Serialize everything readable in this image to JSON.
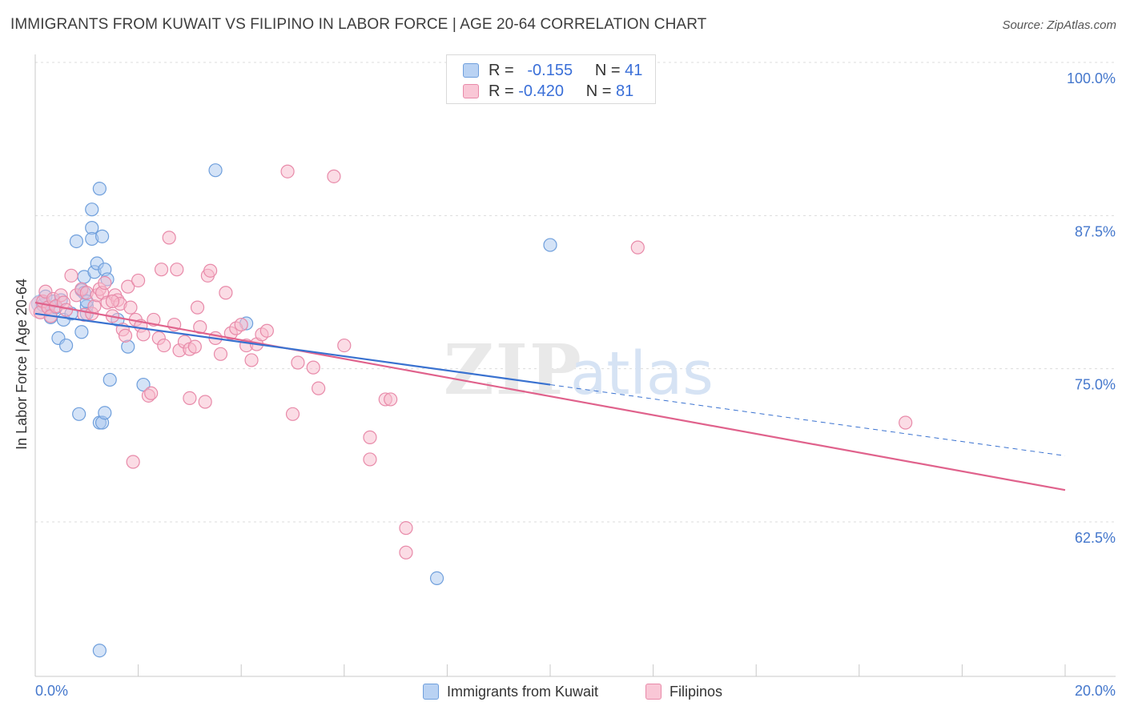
{
  "title": "IMMIGRANTS FROM KUWAIT VS FILIPINO IN LABOR FORCE | AGE 20-64 CORRELATION CHART",
  "source": "Source: ZipAtlas.com",
  "legend": {
    "r_label": "R =",
    "n_label": "N =",
    "series": [
      {
        "name": "Immigrants from Kuwait",
        "r": "-0.155",
        "n": "41"
      },
      {
        "name": "Filipinos",
        "r": "-0.420",
        "n": "81"
      }
    ]
  },
  "chart_data": {
    "type": "scatter",
    "title": "IMMIGRANTS FROM KUWAIT VS FILIPINO IN LABOR FORCE | AGE 20-64 CORRELATION CHART",
    "xlabel": "",
    "ylabel": "In Labor Force | Age 20-64",
    "xlim": [
      0,
      20
    ],
    "ylim": [
      50,
      102.5
    ],
    "x_tick_labels": [
      "0.0%",
      "20.0%"
    ],
    "y_ticks": [
      62.5,
      75.0,
      87.5,
      100.0
    ],
    "y_tick_labels": [
      "62.5%",
      "75.0%",
      "87.5%",
      "100.0%"
    ],
    "watermark": "ZIPatlas",
    "colors": {
      "kuwait_fill": "#a9c8f0",
      "kuwait_stroke": "#6f9fdc",
      "kuwait_line": "#3a72d0",
      "filipino_fill": "#f7b9cc",
      "filipino_stroke": "#e88aa9",
      "filipino_line": "#e0628c",
      "axis_label_blue": "#4477cc"
    },
    "series": [
      {
        "name": "Immigrants from Kuwait",
        "trend": {
          "x0": 0.0,
          "y0": 79.5,
          "x1": 10.0,
          "y1": 73.7,
          "dashed_to_x": 20.0,
          "dashed_to_y": 67.9
        },
        "points": [
          [
            0.15,
            80.2
          ],
          [
            0.2,
            80.9
          ],
          [
            0.25,
            80.0
          ],
          [
            0.3,
            79.2
          ],
          [
            0.35,
            80.5
          ],
          [
            0.4,
            80.0
          ],
          [
            0.45,
            77.5
          ],
          [
            0.5,
            80.6
          ],
          [
            0.55,
            79.0
          ],
          [
            0.6,
            76.9
          ],
          [
            0.7,
            79.5
          ],
          [
            0.8,
            85.4
          ],
          [
            0.85,
            71.3
          ],
          [
            0.9,
            81.4
          ],
          [
            0.9,
            78.0
          ],
          [
            1.0,
            79.5
          ],
          [
            1.0,
            80.1
          ],
          [
            0.95,
            81.2
          ],
          [
            0.95,
            82.5
          ],
          [
            1.0,
            80.5
          ],
          [
            1.1,
            86.5
          ],
          [
            1.1,
            88.0
          ],
          [
            1.15,
            82.9
          ],
          [
            1.1,
            85.6
          ],
          [
            1.2,
            83.6
          ],
          [
            1.25,
            70.6
          ],
          [
            1.25,
            89.7
          ],
          [
            1.3,
            70.6
          ],
          [
            1.25,
            52.0
          ],
          [
            1.3,
            85.8
          ],
          [
            1.35,
            83.1
          ],
          [
            1.35,
            71.4
          ],
          [
            1.4,
            82.3
          ],
          [
            1.45,
            74.1
          ],
          [
            1.6,
            79.0
          ],
          [
            1.8,
            76.8
          ],
          [
            2.1,
            73.7
          ],
          [
            3.5,
            91.2
          ],
          [
            4.1,
            78.7
          ],
          [
            10.0,
            85.1
          ],
          [
            7.8,
            57.9
          ]
        ]
      },
      {
        "name": "Filipinos",
        "trend": {
          "x0": 0.0,
          "y0": 80.4,
          "x1": 20.0,
          "y1": 65.1
        },
        "points": [
          [
            0.1,
            79.6
          ],
          [
            0.15,
            80.5
          ],
          [
            0.2,
            81.3
          ],
          [
            0.25,
            80.0
          ],
          [
            0.3,
            79.3
          ],
          [
            0.35,
            80.7
          ],
          [
            0.4,
            80.1
          ],
          [
            0.5,
            81.0
          ],
          [
            0.55,
            80.4
          ],
          [
            0.6,
            79.8
          ],
          [
            0.7,
            82.6
          ],
          [
            0.8,
            81.0
          ],
          [
            0.9,
            81.5
          ],
          [
            0.95,
            79.4
          ],
          [
            1.0,
            81.2
          ],
          [
            1.1,
            79.5
          ],
          [
            1.15,
            80.1
          ],
          [
            1.2,
            81.0
          ],
          [
            1.25,
            81.5
          ],
          [
            1.3,
            81.2
          ],
          [
            1.35,
            82.0
          ],
          [
            1.4,
            80.4
          ],
          [
            1.5,
            79.3
          ],
          [
            1.55,
            81.0
          ],
          [
            1.6,
            80.6
          ],
          [
            1.65,
            80.3
          ],
          [
            1.7,
            78.2
          ],
          [
            1.75,
            77.7
          ],
          [
            1.8,
            81.7
          ],
          [
            1.85,
            80.0
          ],
          [
            1.9,
            67.4
          ],
          [
            1.95,
            79.0
          ],
          [
            2.0,
            82.2
          ],
          [
            2.05,
            78.5
          ],
          [
            2.1,
            77.8
          ],
          [
            2.2,
            72.8
          ],
          [
            2.25,
            73.0
          ],
          [
            2.3,
            79.0
          ],
          [
            2.4,
            77.5
          ],
          [
            2.45,
            83.1
          ],
          [
            2.5,
            76.9
          ],
          [
            2.6,
            85.7
          ],
          [
            2.7,
            78.6
          ],
          [
            2.75,
            83.1
          ],
          [
            2.8,
            76.5
          ],
          [
            2.9,
            77.2
          ],
          [
            3.0,
            76.6
          ],
          [
            3.1,
            76.8
          ],
          [
            3.15,
            80.0
          ],
          [
            3.2,
            78.4
          ],
          [
            3.3,
            72.3
          ],
          [
            3.35,
            82.6
          ],
          [
            3.4,
            83.0
          ],
          [
            3.5,
            77.5
          ],
          [
            3.6,
            76.2
          ],
          [
            3.7,
            81.2
          ],
          [
            3.8,
            77.9
          ],
          [
            3.9,
            78.3
          ],
          [
            4.0,
            78.6
          ],
          [
            4.1,
            76.9
          ],
          [
            4.2,
            75.7
          ],
          [
            4.3,
            77.0
          ],
          [
            4.4,
            77.8
          ],
          [
            4.5,
            78.1
          ],
          [
            4.9,
            91.1
          ],
          [
            5.0,
            71.3
          ],
          [
            5.1,
            75.5
          ],
          [
            5.4,
            75.1
          ],
          [
            5.5,
            73.4
          ],
          [
            5.8,
            90.7
          ],
          [
            6.0,
            76.9
          ],
          [
            6.5,
            69.4
          ],
          [
            6.5,
            67.6
          ],
          [
            6.8,
            72.5
          ],
          [
            6.9,
            72.5
          ],
          [
            7.2,
            62.0
          ],
          [
            7.2,
            60.0
          ],
          [
            11.7,
            84.9
          ],
          [
            16.9,
            70.6
          ],
          [
            3.0,
            72.6
          ],
          [
            1.5,
            80.5
          ]
        ]
      }
    ]
  }
}
